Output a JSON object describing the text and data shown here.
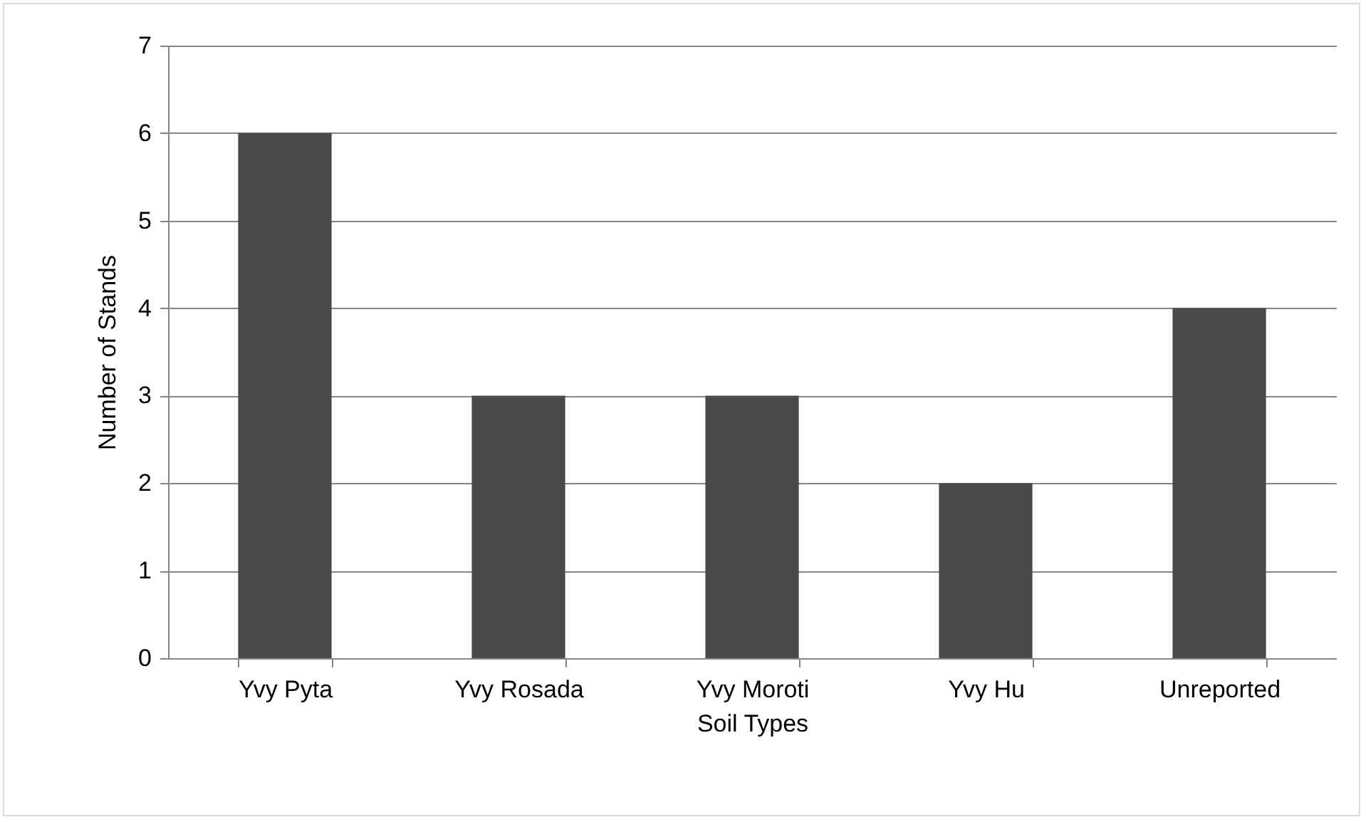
{
  "chart_data": {
    "type": "bar",
    "xlabel": "Soil Types",
    "ylabel": "Number of Stands",
    "categories": [
      "Yvy Pyta",
      "Yvy Rosada",
      "Yvy Moroti",
      "Yvy Hu",
      "Unreported"
    ],
    "values": [
      6,
      3,
      3,
      2,
      4
    ],
    "color": "#4a4a4a",
    "ylim": [
      0,
      7
    ],
    "yticks": [
      0,
      1,
      2,
      3,
      4,
      5,
      6,
      7
    ],
    "grid": "y"
  }
}
